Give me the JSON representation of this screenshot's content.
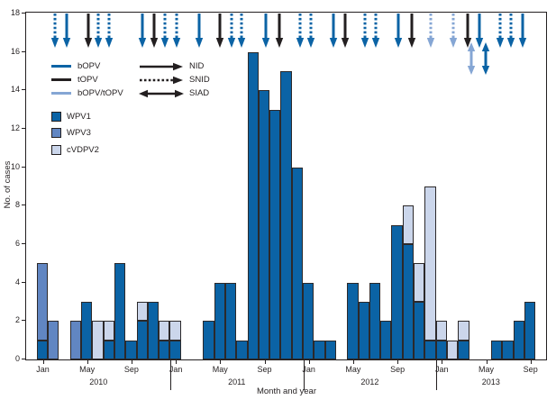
{
  "chart_data": {
    "type": "bar",
    "stacked": true,
    "ylabel": "No. of cases",
    "xlabel": "Month and year",
    "ylim": [
      0,
      18
    ],
    "yticks": [
      0,
      2,
      4,
      6,
      8,
      10,
      12,
      14,
      16,
      18
    ],
    "xtick_months": [
      "Jan",
      "May",
      "Sep"
    ],
    "years": [
      "2010",
      "2011",
      "2012",
      "2013"
    ],
    "series_order": [
      "WPV1",
      "WPV3",
      "cVDPV2"
    ],
    "colors": {
      "WPV1": "#0b63a5",
      "WPV3": "#6186c2",
      "cVDPV2": "#cbd6eb",
      "bOPV": "#0b63a5",
      "tOPV": "#231f20",
      "bOPV/tOPV": "#85a6d4",
      "axis": "#231f20",
      "bar_outline": "#2c292a"
    },
    "months": [
      {
        "m": "Jan",
        "year": "2010",
        "v": [
          1,
          4,
          0
        ]
      },
      {
        "m": "Feb",
        "year": "2010",
        "v": [
          0,
          2,
          0
        ]
      },
      {
        "m": "Mar",
        "year": "2010",
        "v": [
          0,
          0,
          0
        ]
      },
      {
        "m": "Apr",
        "year": "2010",
        "v": [
          0,
          2,
          0
        ]
      },
      {
        "m": "May",
        "year": "2010",
        "v": [
          3,
          0,
          0
        ]
      },
      {
        "m": "Jun",
        "year": "2010",
        "v": [
          0,
          0,
          2
        ]
      },
      {
        "m": "Jul",
        "year": "2010",
        "v": [
          1,
          0,
          1
        ]
      },
      {
        "m": "Aug",
        "year": "2010",
        "v": [
          5,
          0,
          0
        ]
      },
      {
        "m": "Sep",
        "year": "2010",
        "v": [
          1,
          0,
          0
        ]
      },
      {
        "m": "Oct",
        "year": "2010",
        "v": [
          2,
          0,
          1
        ]
      },
      {
        "m": "Nov",
        "year": "2010",
        "v": [
          3,
          0,
          0
        ]
      },
      {
        "m": "Dec",
        "year": "2010",
        "v": [
          1,
          0,
          1
        ]
      },
      {
        "m": "Jan",
        "year": "2011",
        "v": [
          1,
          0,
          1
        ]
      },
      {
        "m": "Feb",
        "year": "2011",
        "v": [
          0,
          0,
          0
        ]
      },
      {
        "m": "Mar",
        "year": "2011",
        "v": [
          0,
          0,
          0
        ]
      },
      {
        "m": "Apr",
        "year": "2011",
        "v": [
          2,
          0,
          0
        ]
      },
      {
        "m": "May",
        "year": "2011",
        "v": [
          4,
          0,
          0
        ]
      },
      {
        "m": "Jun",
        "year": "2011",
        "v": [
          4,
          0,
          0
        ]
      },
      {
        "m": "Jul",
        "year": "2011",
        "v": [
          1,
          0,
          0
        ]
      },
      {
        "m": "Aug",
        "year": "2011",
        "v": [
          16,
          0,
          0
        ]
      },
      {
        "m": "Sep",
        "year": "2011",
        "v": [
          14,
          0,
          0
        ]
      },
      {
        "m": "Oct",
        "year": "2011",
        "v": [
          13,
          0,
          0
        ]
      },
      {
        "m": "Nov",
        "year": "2011",
        "v": [
          15,
          0,
          0
        ]
      },
      {
        "m": "Dec",
        "year": "2011",
        "v": [
          10,
          0,
          0
        ]
      },
      {
        "m": "Jan",
        "year": "2012",
        "v": [
          4,
          0,
          0
        ]
      },
      {
        "m": "Feb",
        "year": "2012",
        "v": [
          1,
          0,
          0
        ]
      },
      {
        "m": "Mar",
        "year": "2012",
        "v": [
          1,
          0,
          0
        ]
      },
      {
        "m": "Apr",
        "year": "2012",
        "v": [
          0,
          0,
          0
        ]
      },
      {
        "m": "May",
        "year": "2012",
        "v": [
          4,
          0,
          0
        ]
      },
      {
        "m": "Jun",
        "year": "2012",
        "v": [
          3,
          0,
          0
        ]
      },
      {
        "m": "Jul",
        "year": "2012",
        "v": [
          4,
          0,
          0
        ]
      },
      {
        "m": "Aug",
        "year": "2012",
        "v": [
          2,
          0,
          0
        ]
      },
      {
        "m": "Sep",
        "year": "2012",
        "v": [
          7,
          0,
          0
        ]
      },
      {
        "m": "Oct",
        "year": "2012",
        "v": [
          6,
          0,
          2
        ]
      },
      {
        "m": "Nov",
        "year": "2012",
        "v": [
          3,
          0,
          2
        ]
      },
      {
        "m": "Dec",
        "year": "2012",
        "v": [
          1,
          0,
          8
        ]
      },
      {
        "m": "Jan",
        "year": "2013",
        "v": [
          1,
          0,
          1
        ]
      },
      {
        "m": "Feb",
        "year": "2013",
        "v": [
          0,
          0,
          1
        ]
      },
      {
        "m": "Mar",
        "year": "2013",
        "v": [
          1,
          0,
          1
        ]
      },
      {
        "m": "Apr",
        "year": "2013",
        "v": [
          0,
          0,
          0
        ]
      },
      {
        "m": "May",
        "year": "2013",
        "v": [
          0,
          0,
          0
        ]
      },
      {
        "m": "Jun",
        "year": "2013",
        "v": [
          1,
          0,
          0
        ]
      },
      {
        "m": "Jul",
        "year": "2013",
        "v": [
          1,
          0,
          0
        ]
      },
      {
        "m": "Aug",
        "year": "2013",
        "v": [
          2,
          0,
          0
        ]
      },
      {
        "m": "Sep",
        "year": "2013",
        "v": [
          3,
          0,
          0
        ]
      },
      {
        "m": "Oct",
        "year": "2013",
        "v": [
          0,
          0,
          0
        ]
      }
    ],
    "campaigns": [
      {
        "x": 1.14,
        "style": "dashed",
        "vaccine": "bOPV"
      },
      {
        "x": 2.19,
        "style": "solid",
        "vaccine": "bOPV"
      },
      {
        "x": 4.14,
        "style": "solid",
        "vaccine": "tOPV"
      },
      {
        "x": 5.03,
        "style": "dashed",
        "vaccine": "bOPV"
      },
      {
        "x": 6.0,
        "style": "dashed",
        "vaccine": "bOPV"
      },
      {
        "x": 9.0,
        "style": "solid",
        "vaccine": "bOPV"
      },
      {
        "x": 10.06,
        "style": "solid",
        "vaccine": "tOPV"
      },
      {
        "x": 11.03,
        "style": "dashed",
        "vaccine": "bOPV"
      },
      {
        "x": 12.08,
        "style": "dashed",
        "vaccine": "bOPV"
      },
      {
        "x": 14.11,
        "style": "solid",
        "vaccine": "bOPV"
      },
      {
        "x": 15.98,
        "style": "solid",
        "vaccine": "tOPV"
      },
      {
        "x": 17.11,
        "style": "dashed",
        "vaccine": "bOPV"
      },
      {
        "x": 18.0,
        "style": "dashed",
        "vaccine": "bOPV"
      },
      {
        "x": 20.19,
        "style": "solid",
        "vaccine": "bOPV"
      },
      {
        "x": 21.41,
        "style": "solid",
        "vaccine": "tOPV"
      },
      {
        "x": 23.28,
        "style": "dashed",
        "vaccine": "bOPV"
      },
      {
        "x": 24.25,
        "style": "dashed",
        "vaccine": "bOPV"
      },
      {
        "x": 26.28,
        "style": "solid",
        "vaccine": "bOPV"
      },
      {
        "x": 27.33,
        "style": "solid",
        "vaccine": "tOPV"
      },
      {
        "x": 29.12,
        "style": "dashed",
        "vaccine": "bOPV"
      },
      {
        "x": 30.09,
        "style": "dashed",
        "vaccine": "bOPV"
      },
      {
        "x": 32.12,
        "style": "solid",
        "vaccine": "bOPV"
      },
      {
        "x": 33.33,
        "style": "solid",
        "vaccine": "tOPV"
      },
      {
        "x": 35.04,
        "style": "dashed",
        "vaccine": "bOPV/tOPV"
      },
      {
        "x": 37.06,
        "style": "dashed",
        "vaccine": "bOPV/tOPV"
      },
      {
        "x": 38.36,
        "style": "solid",
        "vaccine": "tOPV"
      },
      {
        "x": 39.42,
        "style": "solid",
        "vaccine": "bOPV"
      },
      {
        "x": 38.69,
        "style": "double",
        "vaccine": "bOPV/tOPV"
      },
      {
        "x": 39.98,
        "style": "double",
        "vaccine": "bOPV"
      },
      {
        "x": 41.28,
        "style": "dashed",
        "vaccine": "bOPV"
      },
      {
        "x": 42.25,
        "style": "dashed",
        "vaccine": "bOPV"
      },
      {
        "x": 43.31,
        "style": "solid",
        "vaccine": "bOPV"
      }
    ],
    "legend": {
      "vaccine_lines": [
        {
          "label": "bOPV",
          "vaccine": "bOPV"
        },
        {
          "label": "tOPV",
          "vaccine": "tOPV"
        },
        {
          "label": "bOPV/tOPV",
          "vaccine": "bOPV/tOPV"
        }
      ],
      "campaign_types": [
        {
          "label": "NID",
          "style": "solid"
        },
        {
          "label": "SNID",
          "style": "dashed"
        },
        {
          "label": "SIAD",
          "style": "double"
        }
      ],
      "case_types": [
        {
          "label": "WPV1",
          "series": "WPV1"
        },
        {
          "label": "WPV3",
          "series": "WPV3"
        },
        {
          "label": "cVDPV2",
          "series": "cVDPV2"
        }
      ]
    }
  }
}
